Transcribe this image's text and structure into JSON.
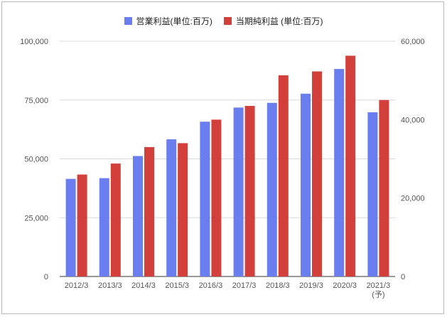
{
  "chart_data": {
    "type": "bar",
    "categories": [
      "2012/3",
      "2013/3",
      "2014/3",
      "2015/3",
      "2016/3",
      "2017/3",
      "2018/3",
      "2019/3",
      "2020/3",
      "2021/3"
    ],
    "category_notes": [
      "",
      "",
      "",
      "",
      "",
      "",
      "",
      "",
      "",
      "(予)"
    ],
    "series": [
      {
        "name": "営業利益(単位:百万)",
        "axis": "left",
        "color": "#6a7ef0",
        "values": [
          41500,
          41800,
          51200,
          58300,
          65800,
          71800,
          73800,
          77700,
          88200,
          69800
        ]
      },
      {
        "name": "当期純利益 (単位:百万)",
        "axis": "right",
        "color": "#d33f3a",
        "values": [
          26000,
          28800,
          33000,
          34000,
          40000,
          43500,
          51300,
          52300,
          56300,
          45000
        ]
      }
    ],
    "y_left": {
      "min": 0,
      "max": 100000,
      "ticks": [
        0,
        25000,
        50000,
        75000,
        100000
      ],
      "tick_labels": [
        "0",
        "25,000",
        "50,000",
        "75,000",
        "100,000"
      ]
    },
    "y_right": {
      "min": 0,
      "max": 60000,
      "ticks": [
        0,
        20000,
        40000,
        60000
      ],
      "tick_labels": [
        "0",
        "20,000",
        "40,000",
        "60,000"
      ]
    },
    "title": "",
    "xlabel": "",
    "ylabel": "",
    "grid": true,
    "legend_position": "top-center"
  }
}
